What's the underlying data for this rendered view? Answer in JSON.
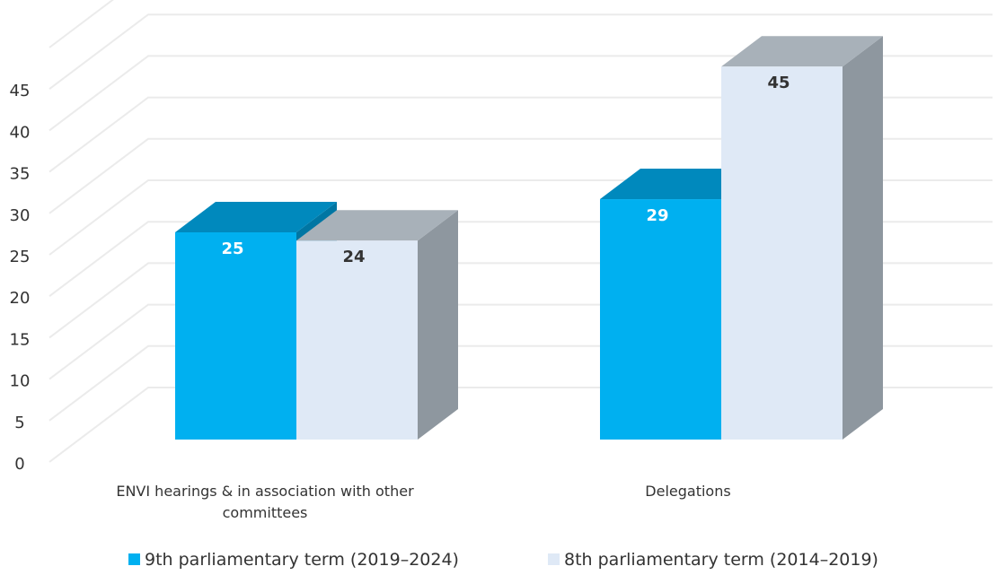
{
  "chart_data": {
    "type": "bar",
    "categories": [
      "ENVI hearings & in association with other committees",
      "Delegations"
    ],
    "series": [
      {
        "name": "9th parliamentary term (2019–2024)",
        "values": [
          25,
          29
        ]
      },
      {
        "name": "8th parliamentary term (2014–2019)",
        "values": [
          24,
          45
        ]
      }
    ],
    "yticks": [
      0,
      5,
      10,
      15,
      20,
      25,
      30,
      35,
      40,
      45
    ],
    "ylim": [
      0,
      50
    ],
    "grid": true,
    "legend": "bottom",
    "colors": {
      "s0_front": "#00b0f0",
      "s0_top": "#0089bd",
      "s0_side": "#0076a3",
      "s1_front": "#dfe9f6",
      "s1_top": "#a8b1b9",
      "s1_side": "#8e979f",
      "s0_label": "#ffffff",
      "s1_label": "#333333"
    }
  }
}
